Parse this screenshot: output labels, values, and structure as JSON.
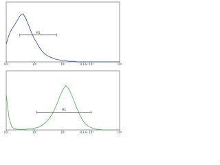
{
  "chart_data": [
    {
      "type": "line",
      "xlog": true,
      "xlim": [
        1,
        10000
      ],
      "ylim": [
        0,
        100
      ],
      "xticks": [
        {
          "value": 1,
          "label": "10⁰"
        },
        {
          "value": 10,
          "label": "10¹"
        },
        {
          "value": 100,
          "label": "10²"
        },
        {
          "value": 1000,
          "label": "10³"
        },
        {
          "value": 10000,
          "label": "10⁴"
        }
      ],
      "xlabel": "FL1-H",
      "x": [
        1,
        1.26,
        1.58,
        2,
        2.51,
        3.16,
        3.98,
        5.01,
        6.31,
        7.94,
        10,
        12.6,
        15.8,
        20,
        25.1,
        31.6,
        39.8,
        50.1,
        63.1,
        79.4,
        100,
        126,
        158,
        200,
        251,
        316,
        398,
        501,
        631,
        794,
        1000,
        1259,
        1585,
        1995,
        2512,
        3162,
        3981,
        5012,
        6310,
        7943,
        10000
      ],
      "series": [
        {
          "color": "#2a3f9a",
          "values": [
            30,
            45,
            55,
            62,
            70,
            78,
            80,
            72,
            60,
            48,
            38,
            30,
            22,
            16,
            12,
            9,
            7,
            5,
            4,
            3,
            2,
            2,
            1,
            1,
            1,
            0,
            0,
            0,
            0,
            0,
            0,
            0,
            0,
            0,
            0,
            0,
            0,
            0,
            0,
            0,
            0
          ]
        }
      ],
      "gate": {
        "label": "M1",
        "range": [
          3,
          60
        ],
        "y": 45
      }
    },
    {
      "type": "line",
      "xlog": true,
      "xlim": [
        1,
        10000
      ],
      "ylim": [
        0,
        100
      ],
      "xticks": [
        {
          "value": 1,
          "label": "10⁰"
        },
        {
          "value": 10,
          "label": "10¹"
        },
        {
          "value": 100,
          "label": "10²"
        },
        {
          "value": 1000,
          "label": "10³"
        },
        {
          "value": 10000,
          "label": "10⁴"
        }
      ],
      "xlabel": "FL1-H",
      "x": [
        1,
        1.26,
        1.58,
        2,
        2.51,
        3.16,
        3.98,
        5.01,
        6.31,
        7.94,
        10,
        12.6,
        15.8,
        20,
        25.1,
        31.6,
        39.8,
        50.1,
        63.1,
        79.4,
        100,
        126,
        158,
        200,
        251,
        316,
        398,
        501,
        631,
        794,
        1000,
        1259,
        1585,
        1995,
        2512,
        3162,
        3981,
        5012,
        6310,
        7943,
        10000
      ],
      "series": [
        {
          "color": "#3cb043",
          "values": [
            60,
            20,
            5,
            2,
            1,
            1,
            1,
            1,
            2,
            2,
            3,
            4,
            6,
            9,
            13,
            18,
            25,
            34,
            45,
            58,
            68,
            75,
            70,
            60,
            48,
            36,
            25,
            16,
            10,
            6,
            4,
            2,
            1,
            1,
            0,
            0,
            0,
            0,
            0,
            0,
            0
          ]
        }
      ],
      "gate": {
        "label": "M1",
        "range": [
          12,
          1000
        ],
        "y": 30
      }
    }
  ]
}
